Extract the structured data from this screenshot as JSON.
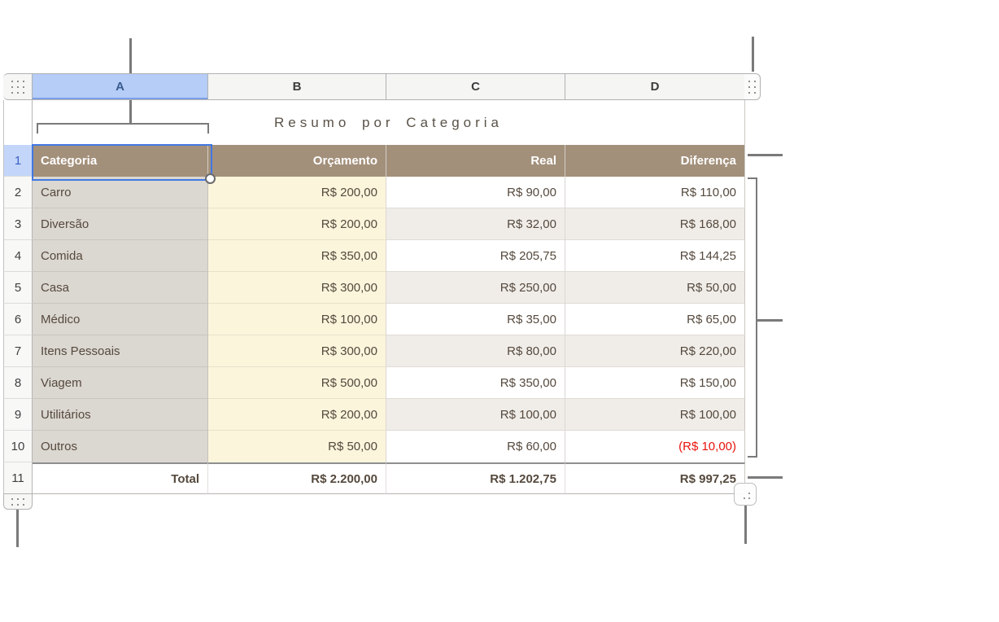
{
  "table": {
    "title": "Resumo por Categoria",
    "column_letters": [
      "A",
      "B",
      "C",
      "D"
    ],
    "selected_column": "A",
    "selected_cell": "A1",
    "row_numbers": [
      "1",
      "2",
      "3",
      "4",
      "5",
      "6",
      "7",
      "8",
      "9",
      "10",
      "11"
    ],
    "header_row": {
      "categoria": "Categoria",
      "orcamento": "Orçamento",
      "real": "Real",
      "diferenca": "Diferença"
    },
    "rows": [
      {
        "categoria": "Carro",
        "orcamento": "R$ 200,00",
        "real": "R$ 90,00",
        "diferenca": "R$ 110,00",
        "is_negative": false
      },
      {
        "categoria": "Diversão",
        "orcamento": "R$ 200,00",
        "real": "R$ 32,00",
        "diferenca": "R$ 168,00",
        "is_negative": false
      },
      {
        "categoria": "Comida",
        "orcamento": "R$ 350,00",
        "real": "R$ 205,75",
        "diferenca": "R$ 144,25",
        "is_negative": false
      },
      {
        "categoria": "Casa",
        "orcamento": "R$ 300,00",
        "real": "R$ 250,00",
        "diferenca": "R$ 50,00",
        "is_negative": false
      },
      {
        "categoria": "Médico",
        "orcamento": "R$ 100,00",
        "real": "R$ 35,00",
        "diferenca": "R$ 65,00",
        "is_negative": false
      },
      {
        "categoria": "Itens Pessoais",
        "orcamento": "R$ 300,00",
        "real": "R$ 80,00",
        "diferenca": "R$ 220,00",
        "is_negative": false
      },
      {
        "categoria": "Viagem",
        "orcamento": "R$ 500,00",
        "real": "R$ 350,00",
        "diferenca": "R$ 150,00",
        "is_negative": false
      },
      {
        "categoria": "Utilitários",
        "orcamento": "R$ 200,00",
        "real": "R$ 100,00",
        "diferenca": "R$ 100,00",
        "is_negative": false
      },
      {
        "categoria": "Outros",
        "orcamento": "R$ 50,00",
        "real": "R$ 60,00",
        "diferenca": "(R$ 10,00)",
        "is_negative": true
      }
    ],
    "total_row": {
      "label": "Total",
      "orcamento": "R$ 2.200,00",
      "real": "R$ 1.202,75",
      "diferenca": "R$ 997,25"
    }
  },
  "icons": {
    "table_handle": "grid-dots-3x3",
    "add_column_handle": "grid-dots-2x3",
    "add_row_handle": "grid-dots-3x2",
    "table_resize_handle": "corner-dots",
    "selection_handle": "circle-dot"
  },
  "colors": {
    "header_fill": "#a3907b",
    "category_column_fill": "#dbd7d1",
    "budget_column_fill": "#fbf5dc",
    "alternate_row_fill": "#f0ede9",
    "selected_column_fill": "#b5cdf7",
    "selection_border": "#4178e3",
    "negative_value": "#e8130c",
    "body_text": "#55493d",
    "callout_line": "#7a7a7a"
  }
}
